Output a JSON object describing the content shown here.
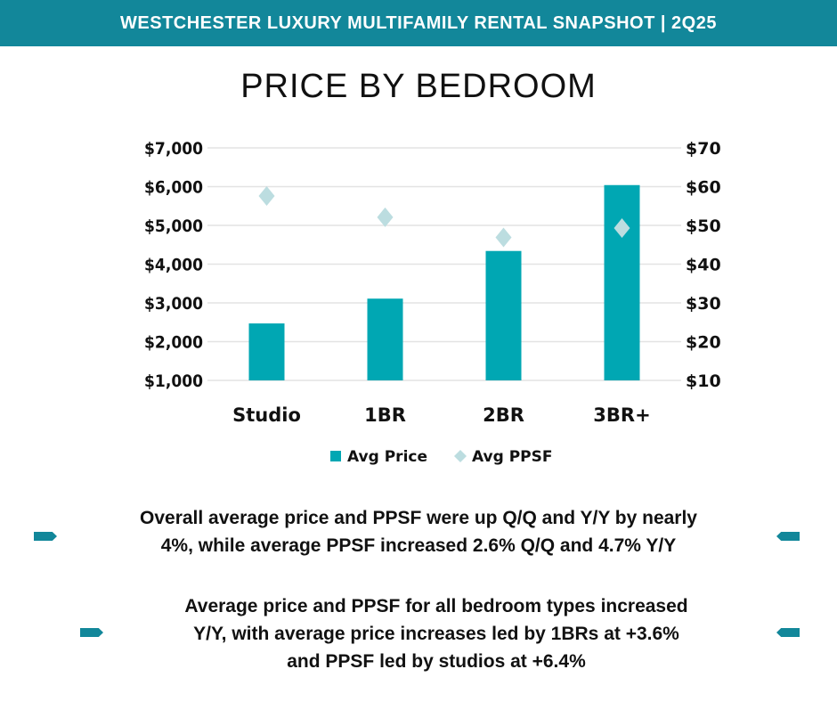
{
  "banner": {
    "title": "WESTCHESTER LUXURY MULTIFAMILY RENTAL SNAPSHOT | 2Q25"
  },
  "chart_data": {
    "type": "bar",
    "title": "PRICE BY BEDROOM",
    "categories": [
      "Studio",
      "1BR",
      "2BR",
      "3BR+"
    ],
    "series": [
      {
        "name": "Avg Price",
        "type": "bar",
        "axis": "left",
        "values": [
          2470,
          3110,
          4340,
          6040
        ],
        "color": "#00a7b3"
      },
      {
        "name": "Avg PPSF",
        "type": "scatter",
        "marker": "diamond",
        "axis": "right",
        "values": [
          57.6,
          52.1,
          46.9,
          49.3
        ],
        "color": "#bcdde0"
      }
    ],
    "y_left": {
      "range": [
        1000,
        7000
      ],
      "ticks": [
        "$1,000",
        "$2,000",
        "$3,000",
        "$4,000",
        "$5,000",
        "$6,000",
        "$7,000"
      ],
      "tick_values": [
        1000,
        2000,
        3000,
        4000,
        5000,
        6000,
        7000
      ]
    },
    "y_right": {
      "range": [
        10,
        70
      ],
      "ticks": [
        "$10",
        "$20",
        "$30",
        "$40",
        "$50",
        "$60",
        "$70"
      ],
      "tick_values": [
        10,
        20,
        30,
        40,
        50,
        60,
        70
      ]
    },
    "grid": true,
    "legend_placement": "bottom"
  },
  "notes": [
    {
      "lines": [
        "Overall average price and PPSF were up Q/Q and Y/Y by nearly",
        "4%, while average PPSF increased 2.6% Q/Q and 4.7% Y/Y"
      ]
    },
    {
      "lines": [
        "Average price and PPSF for all bedroom types increased",
        "Y/Y, with average price increases led by 1BRs at +3.6%",
        "and PPSF led by studios at +6.4%"
      ]
    }
  ],
  "colors": {
    "brand": "#12879a",
    "bar": "#00a7b3",
    "diamond": "#bcdde0"
  }
}
